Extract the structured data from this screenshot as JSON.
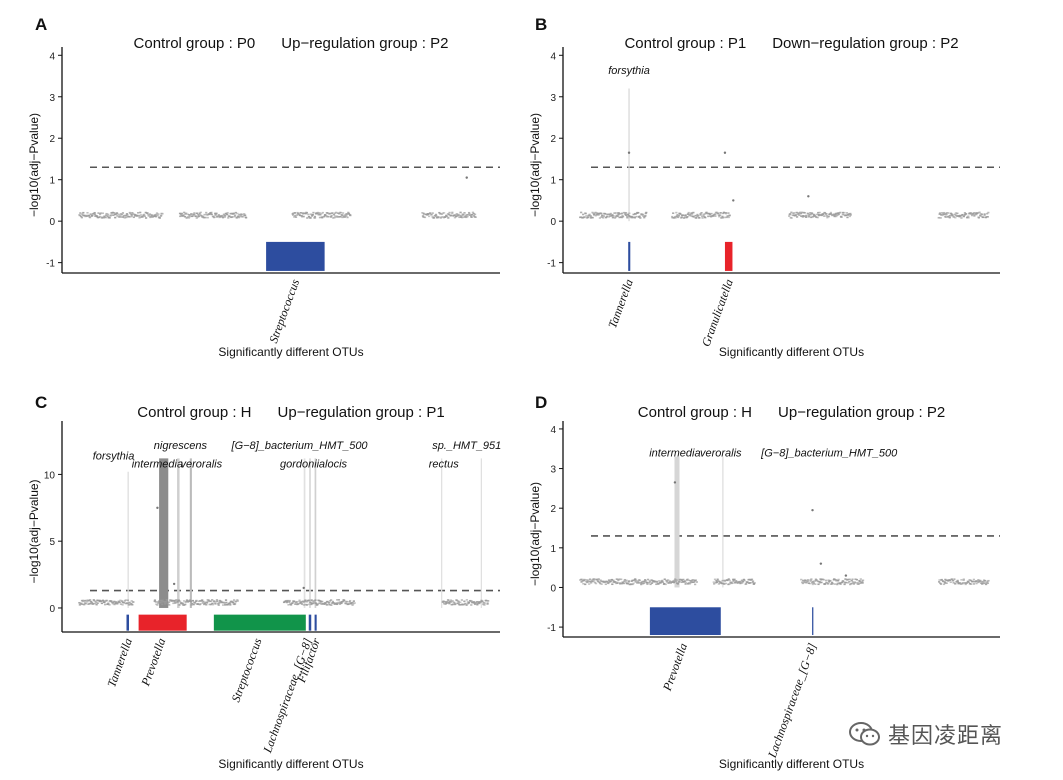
{
  "colors": {
    "up": "#e8232a",
    "down": "#2d4d9f",
    "green": "#11944a",
    "dash": "#555555",
    "scatter": "#9a9a9a"
  },
  "watermark": {
    "text": "基因凌距离",
    "icon": "wechat-icon"
  },
  "chart_data": [
    {
      "panel": "A",
      "type": "bar",
      "title_control": "Control group : P0",
      "title_regulation": "Up−regulation group : P2",
      "ylabel": "−log10(adj−Pvalue)",
      "xlabel": "Significantly different OTUs",
      "ylim": [
        -1.25,
        4.2
      ],
      "yticks": [
        -1,
        0,
        1,
        2,
        3,
        4
      ],
      "threshold": 1.3,
      "otu_count": 100,
      "scatter_segments": [
        [
          0,
          20
        ],
        [
          24,
          40
        ],
        [
          51,
          65
        ],
        [
          82,
          95
        ]
      ],
      "highlight_points": [
        {
          "x": 93,
          "y": 1.05
        }
      ],
      "bars": [
        {
          "label": "Streptococcus",
          "x0": 45,
          "x1": 59,
          "y0": -0.5,
          "y1": -1.2,
          "color": "down",
          "labelPos": 52
        }
      ],
      "peaks": [],
      "annotations": []
    },
    {
      "panel": "B",
      "type": "bar",
      "title_control": "Control group : P1",
      "title_regulation": "Down−regulation group : P2",
      "ylabel": "−log10(adj−Pvalue)",
      "xlabel": "Significantly different OTUs",
      "ylim": [
        -1.25,
        4.2
      ],
      "yticks": [
        -1,
        0,
        1,
        2,
        3,
        4
      ],
      "threshold": 1.3,
      "otu_count": 100,
      "scatter_segments": [
        [
          0,
          16
        ],
        [
          22,
          36
        ],
        [
          50,
          65
        ],
        [
          86,
          98
        ]
      ],
      "highlight_points": [
        {
          "x": 12,
          "y": 1.65
        },
        {
          "x": 35,
          "y": 1.65
        },
        {
          "x": 55,
          "y": 0.6
        },
        {
          "x": 37,
          "y": 0.5
        }
      ],
      "bars": [
        {
          "label": "Tannerella",
          "x0": 11.8,
          "x1": 12.3,
          "y0": -0.5,
          "y1": -1.2,
          "color": "down",
          "labelPos": 12
        },
        {
          "label": "Granulicatella",
          "x0": 35,
          "x1": 36.8,
          "y0": -0.5,
          "y1": -1.2,
          "color": "up",
          "labelPos": 36
        }
      ],
      "peaks": [
        {
          "x": 12,
          "y": 3.2,
          "color": "#d8d8d8",
          "w": 0.3
        }
      ],
      "annotations": [
        {
          "text": "forsythia",
          "x": 12,
          "y": 3.55
        }
      ]
    },
    {
      "panel": "C",
      "type": "bar",
      "title_control": "Control group : H",
      "title_regulation": "Up−regulation group : P1",
      "ylabel": "−log10(adj−Pvalue)",
      "xlabel": "Significantly different OTUs",
      "ylim": [
        -1.8,
        14.0
      ],
      "yticks": [
        0,
        5,
        10
      ],
      "threshold": 1.3,
      "otu_count": 100,
      "scatter_segments": [
        [
          0,
          13
        ],
        [
          18,
          38
        ],
        [
          49,
          66
        ],
        [
          87,
          98
        ]
      ],
      "highlight_points": [
        {
          "x": 19,
          "y": 7.5
        },
        {
          "x": 23,
          "y": 1.8
        },
        {
          "x": 54,
          "y": 1.5
        }
      ],
      "bars": [
        {
          "label": "Tannerella",
          "x0": 11.6,
          "x1": 12.2,
          "y0": -0.5,
          "y1": -1.7,
          "color": "down",
          "labelPos": 12
        },
        {
          "label": "Prevotella",
          "x0": 14.5,
          "x1": 26,
          "y0": -0.5,
          "y1": -1.7,
          "color": "up",
          "labelPos": 20
        },
        {
          "label": "Streptococcus",
          "x0": 32.5,
          "x1": 54.5,
          "y0": -0.5,
          "y1": -1.7,
          "color": "green",
          "labelPos": 43
        },
        {
          "label": "Lachnospiraceae_[G−8]",
          "x0": 55.2,
          "x1": 55.8,
          "y0": -0.5,
          "y1": -1.7,
          "color": "down",
          "labelPos": 55
        },
        {
          "label": "Filifactor",
          "x0": 56.6,
          "x1": 57.1,
          "y0": -0.5,
          "y1": -1.7,
          "color": "down",
          "labelPos": 57
        }
      ],
      "peaks": [
        {
          "x": 12,
          "y": 10.2,
          "color": "#dddddd",
          "w": 0.3
        },
        {
          "x": 20.5,
          "y": 11.2,
          "color": "#8c8c8c",
          "w": 2.2
        },
        {
          "x": 24,
          "y": 11.2,
          "color": "#cfcfcf",
          "w": 0.6
        },
        {
          "x": 27,
          "y": 11.2,
          "color": "#bbbbbb",
          "w": 0.5
        },
        {
          "x": 54.2,
          "y": 11.2,
          "color": "#e1e1e1",
          "w": 0.4
        },
        {
          "x": 55.5,
          "y": 11.2,
          "color": "#d8d8d8",
          "w": 0.4
        },
        {
          "x": 56.8,
          "y": 11.2,
          "color": "#d0d0d0",
          "w": 0.4
        },
        {
          "x": 87,
          "y": 11.2,
          "color": "#e0e0e0",
          "w": 0.3
        },
        {
          "x": 96.5,
          "y": 11.2,
          "color": "#e0e0e0",
          "w": 0.3
        }
      ],
      "annotations": [
        {
          "text": "forsythia",
          "x": 8.5,
          "y": 11.1
        },
        {
          "text": "intermedia",
          "x": 19,
          "y": 10.5
        },
        {
          "text": "nigrescens",
          "x": 24.5,
          "y": 11.9
        },
        {
          "text": "veroralis",
          "x": 29.5,
          "y": 10.5
        },
        {
          "text": "[G−8]_bacterium_HMT_500",
          "x": 53,
          "y": 11.9
        },
        {
          "text": "gordonii",
          "x": 53,
          "y": 10.5
        },
        {
          "text": "alocis",
          "x": 61,
          "y": 10.5
        },
        {
          "text": "sp._HMT_951",
          "x": 93,
          "y": 11.9
        },
        {
          "text": "rectus",
          "x": 87.5,
          "y": 10.5
        }
      ]
    },
    {
      "panel": "D",
      "type": "bar",
      "title_control": "Control group : H",
      "title_regulation": "Up−regulation group : P2",
      "ylabel": "−log10(adj−Pvalue)",
      "xlabel": "Significantly different OTUs",
      "ylim": [
        -1.25,
        4.2
      ],
      "yticks": [
        -1,
        0,
        1,
        2,
        3,
        4
      ],
      "threshold": 1.3,
      "otu_count": 100,
      "scatter_segments": [
        [
          0,
          28
        ],
        [
          32,
          42
        ],
        [
          53,
          68
        ],
        [
          86,
          98
        ]
      ],
      "highlight_points": [
        {
          "x": 23,
          "y": 2.65
        },
        {
          "x": 56,
          "y": 1.95
        },
        {
          "x": 58,
          "y": 0.6
        },
        {
          "x": 64,
          "y": 0.3
        }
      ],
      "bars": [
        {
          "label": "Prevotella",
          "x0": 17,
          "x1": 34,
          "y0": -0.5,
          "y1": -1.2,
          "color": "down",
          "labelPos": 25
        },
        {
          "label": "Lachnospiraceae_[G−8]",
          "x0": 55.9,
          "x1": 56.2,
          "y0": -0.5,
          "y1": -1.2,
          "color": "down",
          "labelPos": 56
        }
      ],
      "peaks": [
        {
          "x": 23.5,
          "y": 3.3,
          "color": "#d6d6d6",
          "w": 1.2
        },
        {
          "x": 34.5,
          "y": 3.3,
          "color": "#dedede",
          "w": 0.3
        }
      ],
      "annotations": [
        {
          "text": "intermedia",
          "x": 23,
          "y": 3.3
        },
        {
          "text": "veroralis",
          "x": 34,
          "y": 3.3
        },
        {
          "text": "[G−8]_bacterium_HMT_500",
          "x": 60,
          "y": 3.3
        }
      ]
    }
  ]
}
